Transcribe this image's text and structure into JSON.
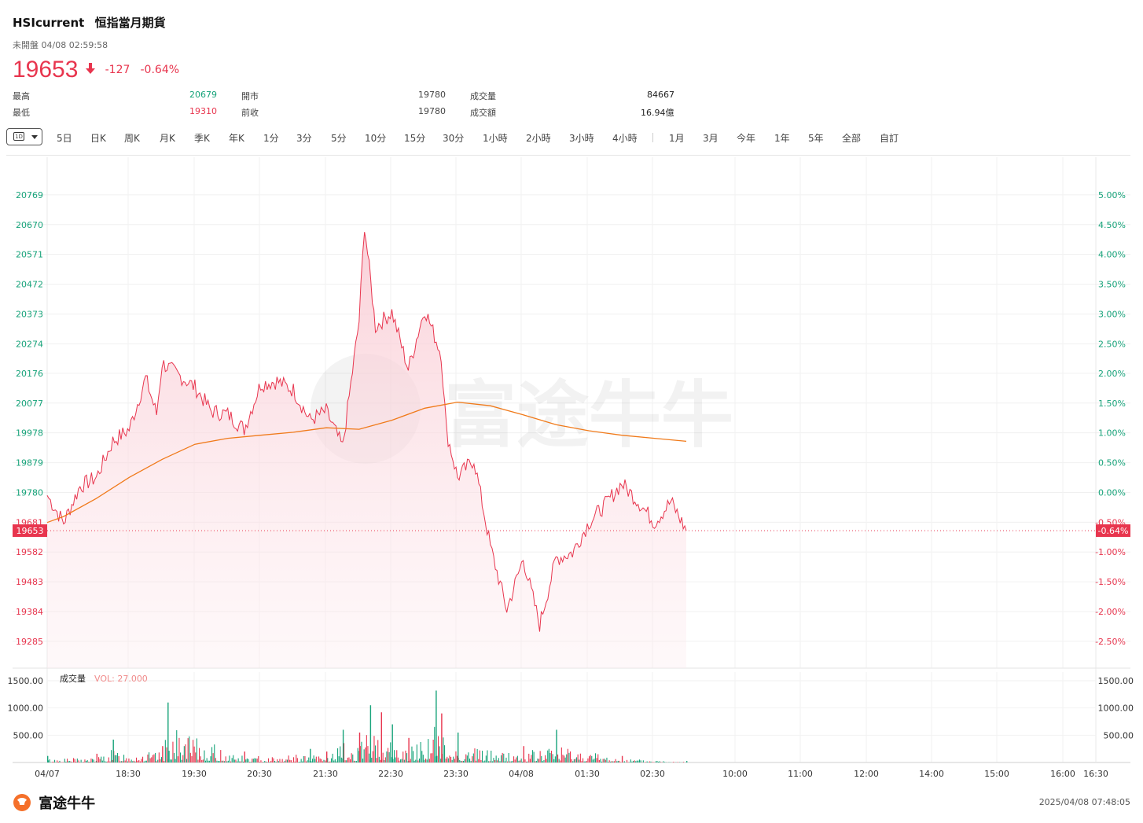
{
  "header": {
    "symbol": "HSIcurrent",
    "name": "恒指當月期貨",
    "status": "未開盤 04/08 02:59:58",
    "price": "19653",
    "change": "-127",
    "change_pct": "-0.64%"
  },
  "stats": {
    "high_label": "最高",
    "high_value": "20679",
    "low_label": "最低",
    "low_value": "19310",
    "open_label": "開市",
    "open_value": "19780",
    "prev_label": "前收",
    "prev_value": "19780",
    "volume_label": "成交量",
    "volume_value": "84667",
    "turnover_label": "成交額",
    "turnover_value": "16.94億"
  },
  "toolbar": {
    "selector_label": "1D",
    "items": [
      "5日",
      "日K",
      "周K",
      "月K",
      "季K",
      "年K",
      "1分",
      "3分",
      "5分",
      "10分",
      "15分",
      "30分",
      "1小時",
      "2小時",
      "3小時",
      "4小時",
      "1月",
      "3月",
      "今年",
      "1年",
      "5年",
      "全部",
      "自訂"
    ]
  },
  "colors": {
    "up": "#17a37a",
    "down": "#e8354e",
    "avg_line": "#f07a1a",
    "price_line": "#e8354e"
  },
  "chart_data": [
    {
      "type": "area",
      "title": "",
      "y_left_ticks": [
        "20769",
        "20670",
        "20571",
        "20472",
        "20373",
        "20274",
        "20176",
        "20077",
        "19978",
        "19879",
        "19780",
        "19681",
        "19582",
        "19483",
        "19384",
        "19285"
      ],
      "y_right_ticks": [
        "5.00%",
        "4.50%",
        "4.00%",
        "3.50%",
        "3.00%",
        "2.50%",
        "2.00%",
        "1.50%",
        "1.00%",
        "0.50%",
        "0.00%",
        "-0.50%",
        "-1.00%",
        "-1.50%",
        "-2.00%",
        "-2.50%"
      ],
      "ylim": [
        19196,
        20868
      ],
      "baseline": 19780,
      "last_price_label": "19653",
      "last_pct_label": "-0.64%",
      "x_ticks": [
        "04/07",
        "18:30",
        "19:30",
        "20:30",
        "21:30",
        "22:30",
        "23:30",
        "04/08",
        "01:30",
        "02:30",
        "10:00",
        "11:00",
        "12:00",
        "14:00",
        "15:00",
        "16:00",
        "16:30"
      ],
      "series": [
        {
          "x": [
            "17:15",
            "17:30",
            "17:45",
            "18:00",
            "18:15",
            "18:30",
            "18:45",
            "18:55",
            "19:00",
            "19:15",
            "19:30",
            "19:45",
            "20:00",
            "20:15",
            "20:30",
            "20:45",
            "21:00",
            "21:15",
            "21:30",
            "21:45",
            "22:00",
            "22:05",
            "22:15",
            "22:30",
            "22:45",
            "23:00",
            "23:15",
            "23:20",
            "23:30",
            "23:45",
            "00:00",
            "00:15",
            "00:30",
            "00:45",
            "01:00",
            "01:15",
            "01:30",
            "01:45",
            "02:00",
            "02:15",
            "02:30",
            "02:45",
            "02:59"
          ],
          "values": [
            19770,
            19680,
            19800,
            19830,
            19950,
            19990,
            20160,
            20040,
            20210,
            20170,
            20130,
            20050,
            20040,
            19990,
            20140,
            20150,
            20120,
            20020,
            20050,
            19930,
            20350,
            20670,
            20330,
            20380,
            20190,
            20390,
            20240,
            19980,
            19830,
            19890,
            19600,
            19390,
            19560,
            19340,
            19560,
            19580,
            19680,
            19740,
            19810,
            19750,
            19680,
            19750,
            19653
          ]
        },
        {
          "name": "",
          "x": [
            "17:15",
            "17:30",
            "18:00",
            "18:30",
            "19:00",
            "19:30",
            "20:00",
            "20:30",
            "21:00",
            "21:30",
            "22:00",
            "22:30",
            "23:00",
            "23:30",
            "00:00",
            "00:30",
            "01:00",
            "01:30",
            "02:00",
            "02:30",
            "02:59"
          ],
          "values": [
            19680,
            19700,
            19760,
            19830,
            19890,
            19940,
            19960,
            19970,
            19980,
            19995,
            19990,
            20020,
            20060,
            20080,
            20068,
            20038,
            20005,
            19985,
            19970,
            19960,
            19950
          ]
        }
      ]
    },
    {
      "type": "bar",
      "title": "成交量",
      "legend": "VOL: 27.000",
      "y_ticks": [
        "1500.00",
        "1000.00",
        "500.00"
      ],
      "ylim": [
        0,
        1500
      ],
      "x": [
        "17:15",
        "18:00",
        "18:15",
        "19:00",
        "19:05",
        "20:15",
        "21:15",
        "21:30",
        "21:45",
        "22:00",
        "22:10",
        "22:20",
        "22:30",
        "22:45",
        "23:10",
        "23:15",
        "23:30",
        "00:30",
        "01:00",
        "02:00",
        "02:59"
      ],
      "values": [
        120,
        160,
        420,
        300,
        1100,
        200,
        250,
        200,
        600,
        550,
        1050,
        920,
        700,
        450,
        1320,
        900,
        550,
        300,
        600,
        120,
        27
      ]
    }
  ],
  "footer": {
    "brand": "富途牛牛",
    "timestamp": "2025/04/08 07:48:05"
  }
}
